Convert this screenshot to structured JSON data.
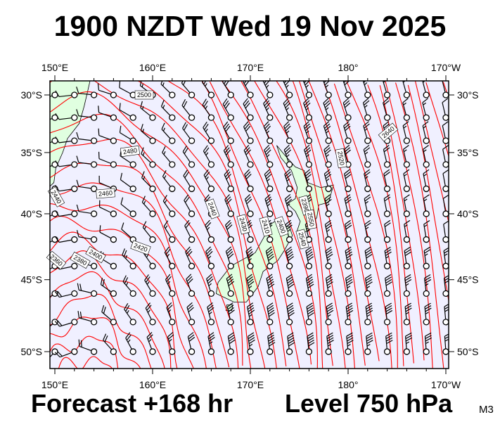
{
  "title": "1900 NZDT Wed 19 Nov 2025",
  "footer": {
    "forecast": "Forecast +168 hr",
    "level": "Level 750 hPa",
    "model": "M3"
  },
  "map": {
    "lon_labels": [
      "150°E",
      "160°E",
      "170°E",
      "180°",
      "170°W"
    ],
    "lat_labels": [
      "30°S",
      "35°S",
      "40°S",
      "45°S",
      "50°S"
    ],
    "contour_labels": [
      "2500",
      "2480",
      "2460",
      "2440",
      "2420",
      "2400",
      "2380",
      "2360",
      "2440",
      "2430",
      "2410",
      "2400",
      "2390",
      "2550",
      "2540",
      "2520",
      "2640"
    ],
    "colors": {
      "ocean": "#f0f0ff",
      "land": "#e0ffe0",
      "contour": "#ff0000",
      "barb": "#000000"
    }
  }
}
